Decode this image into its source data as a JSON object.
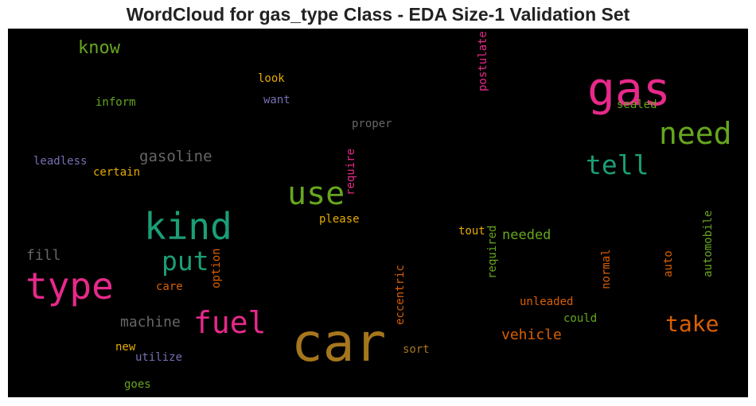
{
  "chart_data": {
    "type": "wordcloud",
    "title": "WordCloud for gas_type Class - EDA Size-1 Validation Set",
    "background": "#000000",
    "words": [
      {
        "text": "car",
        "color": "#a6761d"
      },
      {
        "text": "gas",
        "color": "#e7298a"
      },
      {
        "text": "type",
        "color": "#e7298a"
      },
      {
        "text": "kind",
        "color": "#1b9e77"
      },
      {
        "text": "use",
        "color": "#66a61e"
      },
      {
        "text": "need",
        "color": "#66a61e"
      },
      {
        "text": "fuel",
        "color": "#e7298a"
      },
      {
        "text": "tell",
        "color": "#1b9e77"
      },
      {
        "text": "put",
        "color": "#1b9e77"
      },
      {
        "text": "take",
        "color": "#d95f02"
      },
      {
        "text": "know",
        "color": "#66a61e"
      },
      {
        "text": "gasoline",
        "color": "#666666"
      },
      {
        "text": "machine",
        "color": "#666666"
      },
      {
        "text": "fill",
        "color": "#666666"
      },
      {
        "text": "vehicle",
        "color": "#d95f02"
      },
      {
        "text": "needed",
        "color": "#66a61e"
      },
      {
        "text": "eccentric",
        "color": "#d95f02"
      },
      {
        "text": "require",
        "color": "#e7298a"
      },
      {
        "text": "postulate",
        "color": "#e7298a"
      },
      {
        "text": "automobile",
        "color": "#66a61e"
      },
      {
        "text": "required",
        "color": "#66a61e"
      },
      {
        "text": "option",
        "color": "#d95f02"
      },
      {
        "text": "unleaded",
        "color": "#d95f02"
      },
      {
        "text": "sealed",
        "color": "#66a61e"
      },
      {
        "text": "proper",
        "color": "#666666"
      },
      {
        "text": "please",
        "color": "#e6ab02"
      },
      {
        "text": "normal",
        "color": "#d95f02"
      },
      {
        "text": "could",
        "color": "#66a61e"
      },
      {
        "text": "inform",
        "color": "#66a61e"
      },
      {
        "text": "leadless",
        "color": "#7570b3"
      },
      {
        "text": "certain",
        "color": "#e6ab02"
      },
      {
        "text": "utilize",
        "color": "#7570b3"
      },
      {
        "text": "sort",
        "color": "#a6761d"
      },
      {
        "text": "auto",
        "color": "#d95f02"
      },
      {
        "text": "look",
        "color": "#e6ab02"
      },
      {
        "text": "want",
        "color": "#7570b3"
      },
      {
        "text": "tout",
        "color": "#e6ab02"
      },
      {
        "text": "care",
        "color": "#d95f02"
      },
      {
        "text": "new",
        "color": "#e6ab02"
      },
      {
        "text": "goes",
        "color": "#66a61e"
      }
    ]
  }
}
